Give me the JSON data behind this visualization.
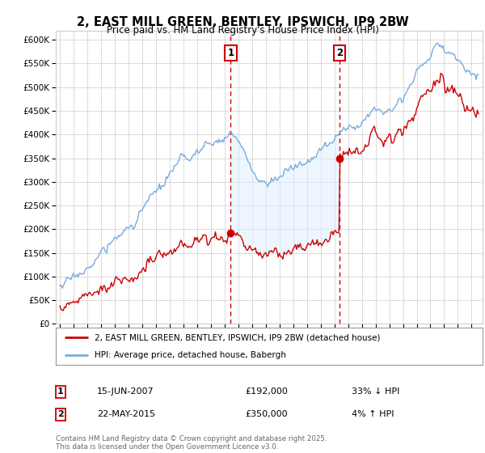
{
  "title": "2, EAST MILL GREEN, BENTLEY, IPSWICH, IP9 2BW",
  "subtitle": "Price paid vs. HM Land Registry's House Price Index (HPI)",
  "ylim": [
    0,
    620000
  ],
  "yticks": [
    0,
    50000,
    100000,
    150000,
    200000,
    250000,
    300000,
    350000,
    400000,
    450000,
    500000,
    550000,
    600000
  ],
  "xlim_start": 1994.7,
  "xlim_end": 2025.8,
  "sale1_date": 2007.45,
  "sale1_price": 192000,
  "sale2_date": 2015.38,
  "sale2_price": 350000,
  "legend_line1": "2, EAST MILL GREEN, BENTLEY, IPSWICH, IP9 2BW (detached house)",
  "legend_line2": "HPI: Average price, detached house, Babergh",
  "footer": "Contains HM Land Registry data © Crown copyright and database right 2025.\nThis data is licensed under the Open Government Licence v3.0.",
  "line_color_actual": "#cc0000",
  "line_color_hpi": "#7aaadd",
  "fill_color_hpi": "#ddeeff",
  "dashed_line_color": "#cc0000",
  "background_color": "#ffffff",
  "grid_color": "#cccccc"
}
